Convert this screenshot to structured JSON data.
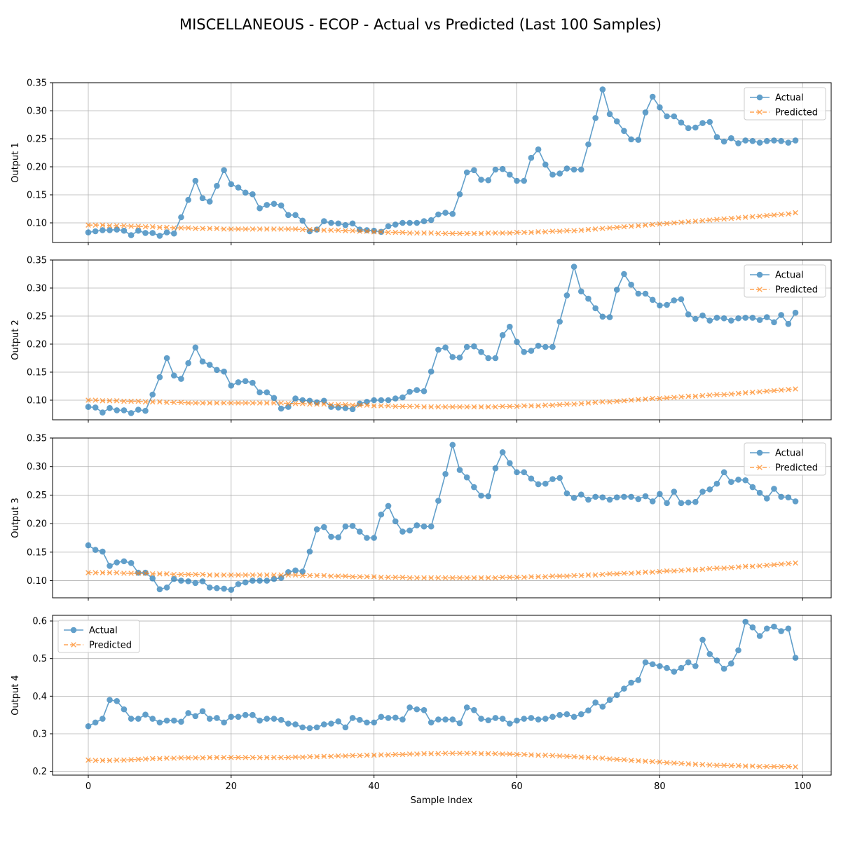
{
  "figure": {
    "title": "MISCELLANEOUS - ECOP - Actual vs Predicted (Last 100 Samples)",
    "xlabel": "Sample Index"
  },
  "colors": {
    "actual": "#1f77b4",
    "predicted": "#ff7f0e",
    "grid": "#b0b0b0"
  },
  "chart_data": [
    {
      "type": "line",
      "ylabel": "Output 1",
      "xlim": [
        -5,
        104
      ],
      "ylim": [
        0.065,
        0.35
      ],
      "yticks": [
        "0.10",
        "0.15",
        "0.20",
        "0.25",
        "0.30",
        "0.35"
      ],
      "xticks": [
        "0",
        "20",
        "40",
        "60",
        "80",
        "100"
      ],
      "grid": true,
      "legend": "upper right",
      "series": [
        {
          "name": "Actual",
          "marker": "circle",
          "linestyle": "solid",
          "values": [
            0.083,
            0.085,
            0.087,
            0.087,
            0.088,
            0.086,
            0.078,
            0.086,
            0.082,
            0.082,
            0.077,
            0.083,
            0.081,
            0.11,
            0.141,
            0.175,
            0.144,
            0.138,
            0.166,
            0.194,
            0.169,
            0.163,
            0.154,
            0.151,
            0.126,
            0.132,
            0.134,
            0.131,
            0.114,
            0.114,
            0.104,
            0.085,
            0.088,
            0.103,
            0.1,
            0.099,
            0.096,
            0.099,
            0.088,
            0.087,
            0.086,
            0.084,
            0.094,
            0.097,
            0.1,
            0.1,
            0.1,
            0.103,
            0.105,
            0.115,
            0.118,
            0.116,
            0.151,
            0.19,
            0.194,
            0.177,
            0.176,
            0.195,
            0.196,
            0.186,
            0.175,
            0.175,
            0.216,
            0.231,
            0.204,
            0.186,
            0.188,
            0.197,
            0.195,
            0.195,
            0.24,
            0.287,
            0.338,
            0.294,
            0.281,
            0.264,
            0.249,
            0.248,
            0.297,
            0.325,
            0.306,
            0.29,
            0.29,
            0.279,
            0.269,
            0.27,
            0.278,
            0.28,
            0.253,
            0.245,
            0.251,
            0.242,
            0.247,
            0.246,
            0.243,
            0.246,
            0.247,
            0.246,
            0.243,
            0.247
          ]
        },
        {
          "name": "Predicted",
          "marker": "x",
          "linestyle": "dashed",
          "values": [
            0.096,
            0.096,
            0.096,
            0.095,
            0.095,
            0.095,
            0.094,
            0.094,
            0.093,
            0.093,
            0.092,
            0.092,
            0.091,
            0.091,
            0.091,
            0.09,
            0.09,
            0.09,
            0.09,
            0.089,
            0.089,
            0.089,
            0.089,
            0.089,
            0.089,
            0.089,
            0.089,
            0.089,
            0.089,
            0.089,
            0.088,
            0.088,
            0.088,
            0.087,
            0.087,
            0.087,
            0.086,
            0.086,
            0.085,
            0.085,
            0.084,
            0.084,
            0.083,
            0.083,
            0.083,
            0.082,
            0.082,
            0.082,
            0.082,
            0.081,
            0.081,
            0.081,
            0.081,
            0.081,
            0.081,
            0.081,
            0.082,
            0.082,
            0.082,
            0.082,
            0.083,
            0.083,
            0.083,
            0.084,
            0.084,
            0.085,
            0.085,
            0.086,
            0.086,
            0.087,
            0.088,
            0.089,
            0.09,
            0.091,
            0.092,
            0.093,
            0.094,
            0.095,
            0.096,
            0.097,
            0.098,
            0.099,
            0.1,
            0.101,
            0.102,
            0.103,
            0.104,
            0.105,
            0.106,
            0.107,
            0.108,
            0.109,
            0.11,
            0.111,
            0.112,
            0.113,
            0.114,
            0.115,
            0.116,
            0.118
          ]
        }
      ]
    },
    {
      "type": "line",
      "ylabel": "Output 2",
      "xlim": [
        -5,
        104
      ],
      "ylim": [
        0.065,
        0.35
      ],
      "yticks": [
        "0.10",
        "0.15",
        "0.20",
        "0.25",
        "0.30",
        "0.35"
      ],
      "xticks": [
        "0",
        "20",
        "40",
        "60",
        "80",
        "100"
      ],
      "grid": true,
      "legend": "upper right",
      "series": [
        {
          "name": "Actual",
          "marker": "circle",
          "linestyle": "solid",
          "values": [
            0.088,
            0.087,
            0.078,
            0.086,
            0.082,
            0.082,
            0.077,
            0.083,
            0.081,
            0.11,
            0.141,
            0.175,
            0.144,
            0.138,
            0.166,
            0.194,
            0.169,
            0.163,
            0.154,
            0.151,
            0.126,
            0.132,
            0.134,
            0.131,
            0.114,
            0.114,
            0.104,
            0.085,
            0.088,
            0.103,
            0.1,
            0.099,
            0.096,
            0.099,
            0.088,
            0.087,
            0.086,
            0.084,
            0.094,
            0.097,
            0.1,
            0.1,
            0.1,
            0.103,
            0.105,
            0.115,
            0.118,
            0.116,
            0.151,
            0.19,
            0.194,
            0.177,
            0.176,
            0.195,
            0.196,
            0.186,
            0.175,
            0.175,
            0.216,
            0.231,
            0.204,
            0.186,
            0.188,
            0.197,
            0.195,
            0.195,
            0.24,
            0.287,
            0.338,
            0.294,
            0.281,
            0.264,
            0.249,
            0.248,
            0.297,
            0.325,
            0.306,
            0.29,
            0.29,
            0.279,
            0.269,
            0.27,
            0.278,
            0.28,
            0.253,
            0.245,
            0.251,
            0.242,
            0.247,
            0.246,
            0.242,
            0.246,
            0.247,
            0.247,
            0.243,
            0.248,
            0.239,
            0.252,
            0.236,
            0.256
          ]
        },
        {
          "name": "Predicted",
          "marker": "x",
          "linestyle": "dashed",
          "values": [
            0.1,
            0.1,
            0.099,
            0.099,
            0.099,
            0.098,
            0.098,
            0.098,
            0.097,
            0.097,
            0.097,
            0.096,
            0.096,
            0.096,
            0.095,
            0.095,
            0.095,
            0.095,
            0.095,
            0.095,
            0.095,
            0.095,
            0.095,
            0.095,
            0.095,
            0.095,
            0.095,
            0.095,
            0.094,
            0.094,
            0.094,
            0.093,
            0.093,
            0.093,
            0.092,
            0.092,
            0.092,
            0.091,
            0.091,
            0.091,
            0.09,
            0.09,
            0.09,
            0.089,
            0.089,
            0.089,
            0.089,
            0.088,
            0.088,
            0.088,
            0.088,
            0.088,
            0.088,
            0.088,
            0.088,
            0.088,
            0.088,
            0.088,
            0.089,
            0.089,
            0.089,
            0.09,
            0.09,
            0.09,
            0.091,
            0.091,
            0.092,
            0.093,
            0.093,
            0.094,
            0.095,
            0.096,
            0.097,
            0.097,
            0.098,
            0.099,
            0.1,
            0.101,
            0.102,
            0.103,
            0.103,
            0.104,
            0.105,
            0.106,
            0.107,
            0.107,
            0.108,
            0.109,
            0.11,
            0.11,
            0.111,
            0.112,
            0.113,
            0.114,
            0.115,
            0.116,
            0.117,
            0.118,
            0.119,
            0.12
          ]
        }
      ]
    },
    {
      "type": "line",
      "ylabel": "Output 3",
      "xlim": [
        -5,
        104
      ],
      "ylim": [
        0.07,
        0.35
      ],
      "yticks": [
        "0.10",
        "0.15",
        "0.20",
        "0.25",
        "0.30",
        "0.35"
      ],
      "xticks": [
        "0",
        "20",
        "40",
        "60",
        "80",
        "100"
      ],
      "grid": true,
      "legend": "upper right",
      "series": [
        {
          "name": "Actual",
          "marker": "circle",
          "linestyle": "solid",
          "values": [
            0.162,
            0.154,
            0.151,
            0.126,
            0.132,
            0.134,
            0.131,
            0.114,
            0.114,
            0.104,
            0.085,
            0.088,
            0.103,
            0.1,
            0.099,
            0.096,
            0.099,
            0.088,
            0.087,
            0.086,
            0.084,
            0.094,
            0.097,
            0.1,
            0.1,
            0.1,
            0.103,
            0.105,
            0.115,
            0.118,
            0.116,
            0.151,
            0.19,
            0.194,
            0.177,
            0.176,
            0.195,
            0.196,
            0.186,
            0.175,
            0.175,
            0.216,
            0.231,
            0.204,
            0.186,
            0.188,
            0.197,
            0.195,
            0.195,
            0.24,
            0.287,
            0.338,
            0.294,
            0.281,
            0.264,
            0.249,
            0.248,
            0.297,
            0.325,
            0.306,
            0.29,
            0.29,
            0.279,
            0.269,
            0.27,
            0.278,
            0.28,
            0.253,
            0.245,
            0.251,
            0.242,
            0.247,
            0.246,
            0.242,
            0.246,
            0.247,
            0.247,
            0.243,
            0.248,
            0.239,
            0.252,
            0.236,
            0.256,
            0.236,
            0.237,
            0.238,
            0.256,
            0.26,
            0.27,
            0.29,
            0.273,
            0.277,
            0.276,
            0.264,
            0.254,
            0.244,
            0.261,
            0.247,
            0.246,
            0.239
          ]
        },
        {
          "name": "Predicted",
          "marker": "x",
          "linestyle": "dashed",
          "values": [
            0.114,
            0.114,
            0.114,
            0.114,
            0.114,
            0.113,
            0.113,
            0.113,
            0.113,
            0.112,
            0.112,
            0.112,
            0.111,
            0.111,
            0.111,
            0.111,
            0.111,
            0.11,
            0.11,
            0.11,
            0.11,
            0.11,
            0.11,
            0.11,
            0.11,
            0.11,
            0.11,
            0.11,
            0.11,
            0.11,
            0.109,
            0.109,
            0.109,
            0.109,
            0.108,
            0.108,
            0.108,
            0.107,
            0.107,
            0.107,
            0.107,
            0.106,
            0.106,
            0.106,
            0.106,
            0.105,
            0.105,
            0.105,
            0.105,
            0.105,
            0.105,
            0.105,
            0.105,
            0.105,
            0.105,
            0.105,
            0.105,
            0.105,
            0.106,
            0.106,
            0.106,
            0.106,
            0.107,
            0.107,
            0.107,
            0.108,
            0.108,
            0.108,
            0.109,
            0.109,
            0.11,
            0.11,
            0.111,
            0.112,
            0.112,
            0.113,
            0.113,
            0.114,
            0.115,
            0.115,
            0.116,
            0.117,
            0.117,
            0.118,
            0.119,
            0.119,
            0.12,
            0.121,
            0.122,
            0.122,
            0.123,
            0.124,
            0.125,
            0.125,
            0.126,
            0.127,
            0.128,
            0.129,
            0.13,
            0.131
          ]
        }
      ]
    },
    {
      "type": "line",
      "ylabel": "Output 4",
      "xlim": [
        -5,
        104
      ],
      "ylim": [
        0.19,
        0.615
      ],
      "yticks": [
        "0.2",
        "0.3",
        "0.4",
        "0.5",
        "0.6"
      ],
      "xticks": [
        "0",
        "20",
        "40",
        "60",
        "80",
        "100"
      ],
      "grid": true,
      "legend": "upper left",
      "series": [
        {
          "name": "Actual",
          "marker": "circle",
          "linestyle": "solid",
          "values": [
            0.32,
            0.33,
            0.34,
            0.39,
            0.387,
            0.365,
            0.34,
            0.34,
            0.351,
            0.34,
            0.33,
            0.335,
            0.335,
            0.332,
            0.355,
            0.347,
            0.36,
            0.34,
            0.342,
            0.33,
            0.345,
            0.345,
            0.35,
            0.35,
            0.335,
            0.34,
            0.34,
            0.337,
            0.327,
            0.325,
            0.317,
            0.315,
            0.317,
            0.325,
            0.327,
            0.333,
            0.317,
            0.342,
            0.337,
            0.33,
            0.33,
            0.345,
            0.342,
            0.343,
            0.338,
            0.37,
            0.365,
            0.363,
            0.33,
            0.338,
            0.338,
            0.338,
            0.328,
            0.37,
            0.363,
            0.34,
            0.336,
            0.342,
            0.34,
            0.327,
            0.335,
            0.34,
            0.342,
            0.338,
            0.34,
            0.345,
            0.35,
            0.352,
            0.345,
            0.352,
            0.362,
            0.383,
            0.372,
            0.39,
            0.403,
            0.42,
            0.436,
            0.443,
            0.49,
            0.485,
            0.48,
            0.475,
            0.465,
            0.475,
            0.49,
            0.48,
            0.55,
            0.512,
            0.495,
            0.473,
            0.487,
            0.522,
            0.598,
            0.583,
            0.56,
            0.58,
            0.585,
            0.573,
            0.58,
            0.502
          ]
        },
        {
          "name": "Predicted",
          "marker": "x",
          "linestyle": "dashed",
          "values": [
            0.23,
            0.229,
            0.229,
            0.229,
            0.23,
            0.23,
            0.231,
            0.232,
            0.233,
            0.234,
            0.234,
            0.235,
            0.235,
            0.236,
            0.236,
            0.236,
            0.236,
            0.237,
            0.237,
            0.237,
            0.237,
            0.237,
            0.237,
            0.237,
            0.237,
            0.237,
            0.237,
            0.237,
            0.237,
            0.238,
            0.238,
            0.239,
            0.239,
            0.24,
            0.24,
            0.241,
            0.241,
            0.242,
            0.242,
            0.243,
            0.243,
            0.244,
            0.244,
            0.245,
            0.245,
            0.246,
            0.246,
            0.247,
            0.247,
            0.247,
            0.248,
            0.248,
            0.248,
            0.248,
            0.248,
            0.247,
            0.247,
            0.247,
            0.246,
            0.246,
            0.245,
            0.245,
            0.244,
            0.243,
            0.243,
            0.242,
            0.241,
            0.24,
            0.239,
            0.238,
            0.237,
            0.236,
            0.235,
            0.233,
            0.232,
            0.231,
            0.229,
            0.228,
            0.227,
            0.226,
            0.225,
            0.223,
            0.222,
            0.221,
            0.22,
            0.219,
            0.218,
            0.217,
            0.216,
            0.216,
            0.215,
            0.215,
            0.214,
            0.214,
            0.213,
            0.213,
            0.213,
            0.213,
            0.213,
            0.212
          ]
        }
      ]
    }
  ]
}
